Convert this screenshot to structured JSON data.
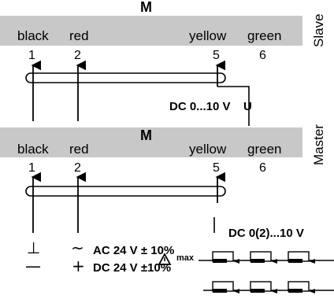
{
  "slave": {
    "side_label": "Slave",
    "device_label": "M",
    "wires": [
      "black",
      "red",
      "yellow",
      "green"
    ],
    "terminals": [
      "1",
      "2",
      "5",
      "6"
    ]
  },
  "master": {
    "side_label": "Master",
    "device_label": "M",
    "wires": [
      "black",
      "red",
      "yellow",
      "green"
    ],
    "terminals": [
      "1",
      "2",
      "5",
      "6"
    ]
  },
  "interlink": {
    "signal_label": "DC 0...10 V",
    "signal_symbol": "U"
  },
  "supply": {
    "ground_symbol": "⊥",
    "minus_symbol": "—",
    "ac_symbol": "~",
    "plus_symbol": "+",
    "ac_label": "AC 24 V ± 10%",
    "dc_label": "DC 24 V ±10%"
  },
  "output": {
    "signal_label": "DC 0(2)...10 V",
    "max_label": "max",
    "warning_icon": "warning-triangle-icon",
    "actuator_icon": "actuator-icon"
  }
}
